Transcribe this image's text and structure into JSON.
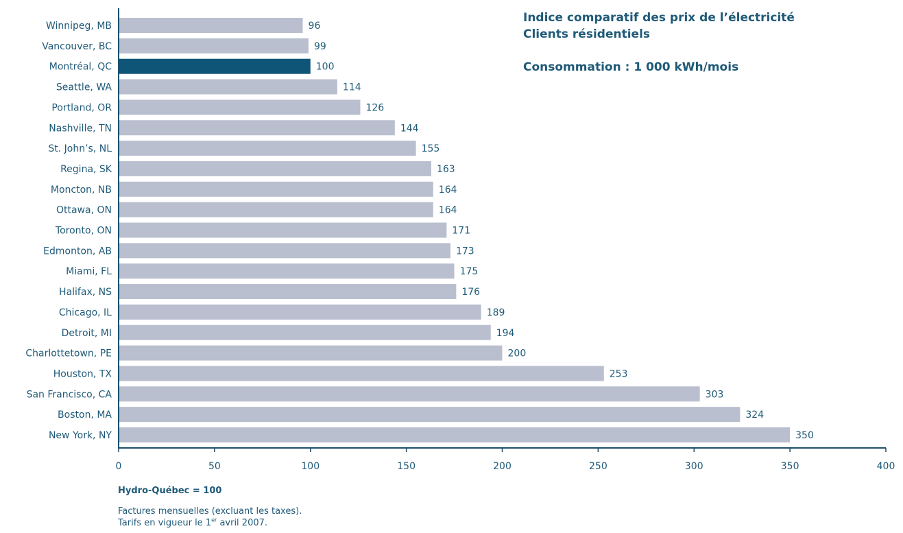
{
  "chart_data": {
    "type": "bar",
    "orientation": "horizontal",
    "title": "Indice comparatif des prix de l’électricité",
    "subtitle": "Clients résidentiels",
    "consumption_label": "Consommation : 1 000 kWh/mois",
    "categories": [
      "Winnipeg, MB",
      "Vancouver, BC",
      "Montréal, QC",
      "Seattle, WA",
      "Portland, OR",
      "Nashville, TN",
      "St. John’s, NL",
      "Regina, SK",
      "Moncton, NB",
      "Ottawa, ON",
      "Toronto, ON",
      "Edmonton, AB",
      "Miami, FL",
      "Halifax, NS",
      "Chicago, IL",
      "Detroit, MI",
      "Charlottetown, PE",
      "Houston, TX",
      "San Francisco, CA",
      "Boston, MA",
      "New York, NY"
    ],
    "values": [
      96,
      99,
      100,
      114,
      126,
      144,
      155,
      163,
      164,
      164,
      171,
      173,
      175,
      176,
      189,
      194,
      200,
      253,
      303,
      324,
      350
    ],
    "highlight": "Montréal, QC",
    "xlim": [
      0,
      400
    ],
    "xticks": [
      0,
      50,
      100,
      150,
      200,
      250,
      300,
      350,
      400
    ],
    "grid": false,
    "colors": {
      "bar": "#babfcf",
      "highlight": "#0e5577",
      "text": "#1f5a78",
      "axis": "#1d4f6b"
    }
  },
  "footer": {
    "note_bold": "Hydro-Québec = 100",
    "note_1": "Factures mensuelles (excluant les taxes).",
    "note_2_prefix": "Tarifs en vigueur le 1",
    "note_2_sup": "er",
    "note_2_suffix": " avril 2007."
  }
}
